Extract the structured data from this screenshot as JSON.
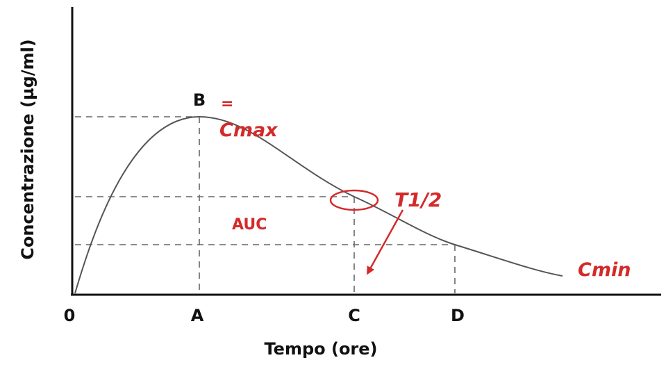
{
  "axes": {
    "y_label": "Concentrazione (µg/ml)",
    "x_label": "Tempo (ore)",
    "origin_label": "0"
  },
  "points": {
    "a": "A",
    "b": "B",
    "c": "C",
    "d": "D"
  },
  "annotations": {
    "equals": "=",
    "cmax": "Cmax",
    "half_life": "T1/2",
    "auc": "AUC",
    "cmin": "Cmin"
  },
  "colors": {
    "axis": "#111111",
    "curve": "#555555",
    "guide": "#666666",
    "accent": "#d42a2a"
  }
}
